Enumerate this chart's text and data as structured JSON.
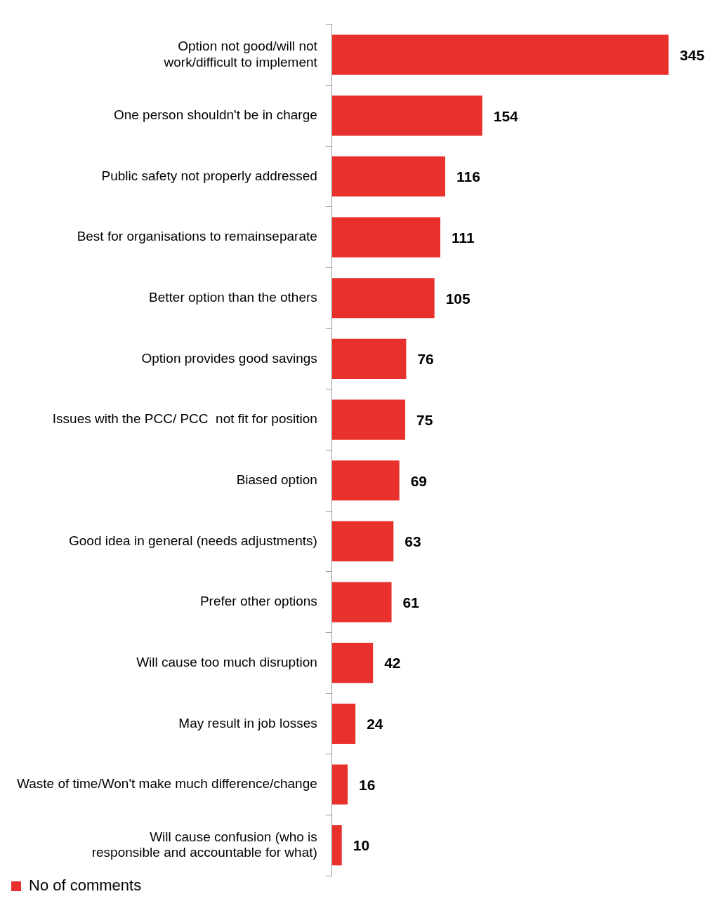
{
  "chart_data": {
    "type": "bar",
    "orientation": "horizontal",
    "categories": [
      "Option not good/will not work/difficult to implement",
      "One person shouldn't be in charge",
      "Public safety not properly addressed",
      "Best for organisations to remainseparate",
      "Better option than the others",
      "Option provides good savings",
      "Issues with the PCC/ PCC  not fit for position",
      "Biased option",
      "Good idea in general (needs adjustments)",
      "Prefer other options",
      "Will cause too much disruption",
      "May result in job losses",
      "Waste of time/Won't make much difference/change",
      "Will cause confusion (who is responsible and accountable for what)"
    ],
    "series": [
      {
        "name": "No of comments",
        "color": "#e8312c",
        "values": [
          345,
          154,
          116,
          111,
          105,
          76,
          75,
          69,
          63,
          61,
          42,
          24,
          16,
          10
        ]
      }
    ],
    "data_labels": true,
    "legend": "bottom left"
  }
}
